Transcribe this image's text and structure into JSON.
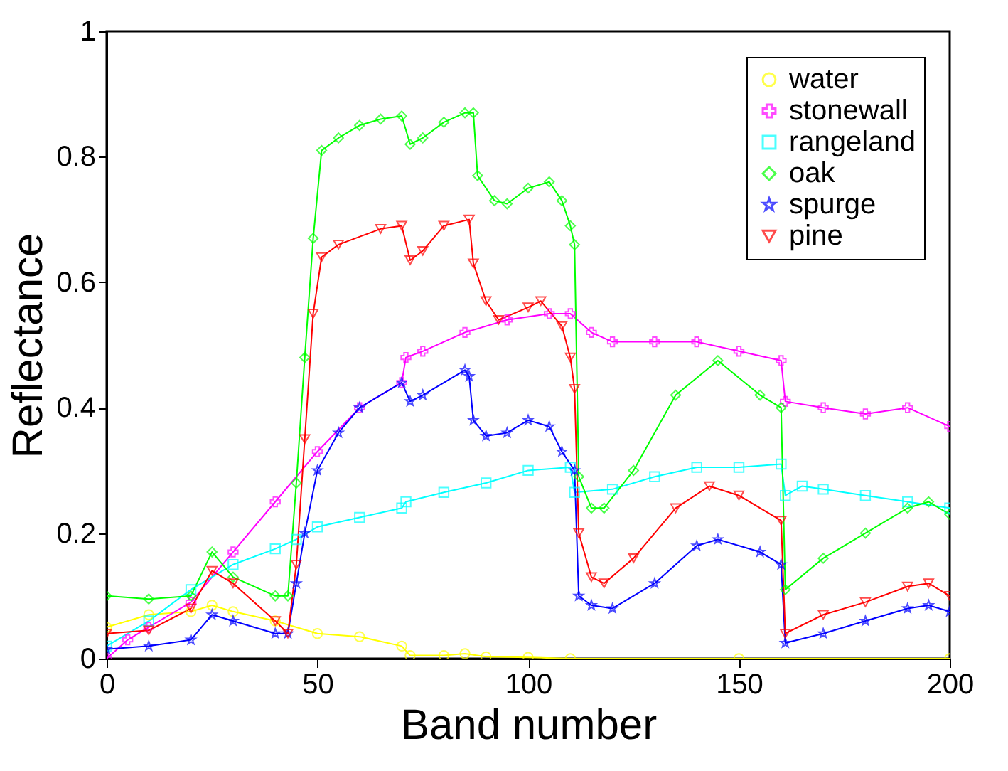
{
  "chart_data": {
    "type": "line",
    "xlabel": "Band number",
    "ylabel": "Reflectance",
    "xlim": [
      0,
      200
    ],
    "ylim": [
      0,
      1
    ],
    "xticks": [
      0,
      50,
      100,
      150,
      200
    ],
    "yticks": [
      0,
      0.2,
      0.4,
      0.6,
      0.8,
      1
    ],
    "grid": false,
    "legend": "top right",
    "series": [
      {
        "name": "water",
        "color": "#ffff00",
        "marker": "circle",
        "x": [
          0,
          10,
          20,
          25,
          30,
          40,
          50,
          60,
          70,
          72,
          80,
          85,
          90,
          100,
          110,
          150,
          200
        ],
        "values": [
          0.05,
          0.07,
          0.075,
          0.085,
          0.075,
          0.06,
          0.04,
          0.035,
          0.02,
          0.005,
          0.005,
          0.008,
          0.003,
          0.002,
          0,
          0,
          0
        ]
      },
      {
        "name": "stonewall",
        "color": "#ff00ff",
        "marker": "cross",
        "x": [
          0,
          5,
          10,
          20,
          30,
          40,
          50,
          60,
          70,
          71,
          75,
          85,
          95,
          105,
          110,
          115,
          120,
          130,
          140,
          150,
          160,
          161,
          170,
          180,
          190,
          200
        ],
        "values": [
          0,
          0.03,
          0.05,
          0.09,
          0.17,
          0.25,
          0.33,
          0.4,
          0.44,
          0.48,
          0.49,
          0.52,
          0.54,
          0.55,
          0.55,
          0.52,
          0.505,
          0.505,
          0.505,
          0.49,
          0.475,
          0.41,
          0.4,
          0.39,
          0.4,
          0.37
        ]
      },
      {
        "name": "rangeland",
        "color": "#00ffff",
        "marker": "square",
        "x": [
          0,
          10,
          20,
          30,
          40,
          45,
          50,
          60,
          70,
          71,
          80,
          90,
          100,
          110,
          111,
          120,
          130,
          140,
          150,
          160,
          161,
          165,
          170,
          180,
          190,
          200
        ],
        "values": [
          0.02,
          0.06,
          0.11,
          0.15,
          0.175,
          0.19,
          0.21,
          0.225,
          0.24,
          0.25,
          0.265,
          0.28,
          0.3,
          0.305,
          0.265,
          0.27,
          0.29,
          0.305,
          0.305,
          0.31,
          0.26,
          0.275,
          0.27,
          0.26,
          0.25,
          0.24
        ]
      },
      {
        "name": "oak",
        "color": "#00ff00",
        "marker": "diamond",
        "x": [
          0,
          10,
          20,
          25,
          30,
          40,
          43,
          45,
          47,
          49,
          51,
          55,
          60,
          65,
          70,
          72,
          75,
          80,
          85,
          87,
          88,
          92,
          95,
          100,
          105,
          108,
          110,
          111,
          112,
          115,
          118,
          125,
          135,
          145,
          155,
          160,
          161,
          170,
          180,
          190,
          195,
          200
        ],
        "values": [
          0.1,
          0.095,
          0.1,
          0.17,
          0.13,
          0.1,
          0.1,
          0.28,
          0.48,
          0.67,
          0.81,
          0.83,
          0.85,
          0.86,
          0.865,
          0.82,
          0.83,
          0.855,
          0.87,
          0.87,
          0.77,
          0.73,
          0.725,
          0.75,
          0.76,
          0.73,
          0.69,
          0.66,
          0.29,
          0.24,
          0.24,
          0.3,
          0.42,
          0.475,
          0.42,
          0.4,
          0.11,
          0.16,
          0.2,
          0.24,
          0.25,
          0.23
        ]
      },
      {
        "name": "spurge",
        "color": "#0000ff",
        "marker": "star",
        "x": [
          0,
          10,
          20,
          25,
          30,
          40,
          43,
          45,
          47,
          50,
          55,
          60,
          70,
          72,
          75,
          85,
          86,
          87,
          90,
          95,
          100,
          105,
          108,
          111,
          112,
          115,
          120,
          130,
          140,
          145,
          155,
          160,
          161,
          170,
          180,
          190,
          195,
          200
        ],
        "values": [
          0.015,
          0.02,
          0.03,
          0.07,
          0.06,
          0.04,
          0.04,
          0.12,
          0.2,
          0.3,
          0.36,
          0.4,
          0.44,
          0.41,
          0.42,
          0.46,
          0.45,
          0.38,
          0.355,
          0.36,
          0.38,
          0.37,
          0.33,
          0.3,
          0.1,
          0.085,
          0.08,
          0.12,
          0.18,
          0.19,
          0.17,
          0.15,
          0.025,
          0.04,
          0.06,
          0.08,
          0.085,
          0.075
        ]
      },
      {
        "name": "pine",
        "color": "#ff0000",
        "marker": "triangle",
        "x": [
          0,
          10,
          20,
          25,
          30,
          40,
          43,
          45,
          47,
          49,
          51,
          55,
          65,
          70,
          72,
          75,
          80,
          86,
          87,
          90,
          93,
          100,
          103,
          108,
          110,
          111,
          112,
          115,
          118,
          125,
          135,
          143,
          150,
          160,
          161,
          170,
          180,
          190,
          195,
          200
        ],
        "values": [
          0.04,
          0.045,
          0.08,
          0.14,
          0.12,
          0.06,
          0.04,
          0.15,
          0.35,
          0.55,
          0.64,
          0.66,
          0.685,
          0.69,
          0.635,
          0.65,
          0.69,
          0.7,
          0.63,
          0.57,
          0.54,
          0.56,
          0.57,
          0.53,
          0.48,
          0.43,
          0.2,
          0.13,
          0.12,
          0.16,
          0.24,
          0.275,
          0.26,
          0.22,
          0.04,
          0.07,
          0.09,
          0.115,
          0.12,
          0.1
        ]
      }
    ]
  }
}
